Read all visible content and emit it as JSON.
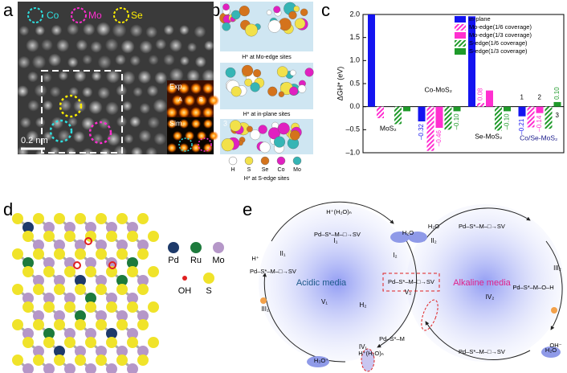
{
  "panels": {
    "a": {
      "letter": "a",
      "legend": [
        "Co",
        "Mo",
        "Se"
      ],
      "insets": [
        "Exp.",
        "Sim."
      ],
      "sites": [
        "A",
        "B"
      ],
      "scale_bar": "0.2 nm"
    },
    "b": {
      "letter": "b",
      "captions": [
        "H* at Mo-edge sites",
        "H* at in-plane sites",
        "H* at S-edge sites"
      ],
      "marker": "3",
      "legend": [
        "H",
        "S",
        "Se",
        "Co",
        "Mo"
      ]
    },
    "c": {
      "letter": "c"
    },
    "d": {
      "letter": "d",
      "legend": [
        "Pd",
        "Ru",
        "Mo",
        "OH",
        "S"
      ]
    },
    "e": {
      "letter": "e",
      "media": [
        "Acidic media",
        "Alkaline media"
      ],
      "steps": [
        "I₁",
        "II₁",
        "III₁",
        "IV₁",
        "V₁",
        "H₂",
        "I₂",
        "II₂",
        "III₂",
        "IV₂",
        "V₂"
      ],
      "formulas": [
        "H⁺(H₂O)ₙ",
        "Pd–S*–M–□→SV",
        "H⁺",
        "Pd–S*–M–□→SV",
        "Pd–S*–M",
        "H⁺(H₂O)ₙ",
        "H₃O⁺",
        "Pd–S*–M–□→SV",
        "Pd–S*–M–□→SV",
        "Pd–S*–M–O–H",
        "OH⁻",
        "Pd–S*–M–□→SV",
        "H₂O",
        "H₂O",
        "H₂O"
      ]
    }
  },
  "chart_data": {
    "type": "bar",
    "y_label": "ΔGH* (eV)",
    "categories": [
      "MoS₂",
      "Co-MoS₂",
      "Se-MoS₂",
      "Co/Se-MoS₂"
    ],
    "ylim": [
      -1.0,
      2.0
    ],
    "yticks": [
      {
        "value": -1.0,
        "label": "–1.0"
      },
      {
        "value": -0.5,
        "label": "–0.5"
      },
      {
        "value": 0,
        "label": "0.0"
      },
      {
        "value": 0.5,
        "label": "0.5"
      },
      {
        "value": 1.0,
        "label": "1.0"
      },
      {
        "value": 1.5,
        "label": "1.5"
      },
      {
        "value": 2.0,
        "label": "2.0"
      }
    ],
    "legend": "upper right",
    "annotations": [
      "1",
      "2",
      "3"
    ],
    "series": [
      {
        "name": "in-plane",
        "color": "#1414f0",
        "hatch": false,
        "values": [
          2.0,
          -0.32,
          1.96,
          -0.21
        ],
        "value_labels": [
          null,
          "–0.32",
          null,
          "–0.21"
        ]
      },
      {
        "name": "Mo-edge(1/6 coverage)",
        "color": "#ff2fd0",
        "hatch": true,
        "values": [
          -0.25,
          -0.96,
          0.08,
          -0.45
        ],
        "value_labels": [
          null,
          null,
          "0.08",
          null
        ]
      },
      {
        "name": "Mo-edge(1/3 coverage)",
        "color": "#ff2fd0",
        "hatch": false,
        "values": [
          null,
          -0.46,
          0.35,
          -0.14
        ],
        "value_labels": [
          null,
          "–0.46",
          null,
          "–0.14"
        ]
      },
      {
        "name": "S-edge(1/6 coverage)",
        "color": "#1f9a2a",
        "hatch": true,
        "values": [
          -0.38,
          -0.5,
          -0.52,
          -0.48
        ],
        "value_labels": [
          null,
          null,
          null,
          null
        ]
      },
      {
        "name": "S-edge(1/3 coverage)",
        "color": "#1f9a2a",
        "hatch": false,
        "values": [
          -0.1,
          -0.1,
          -0.1,
          0.1
        ],
        "value_labels": [
          null,
          "–0.10",
          "–0.10",
          "0.10"
        ]
      }
    ]
  }
}
